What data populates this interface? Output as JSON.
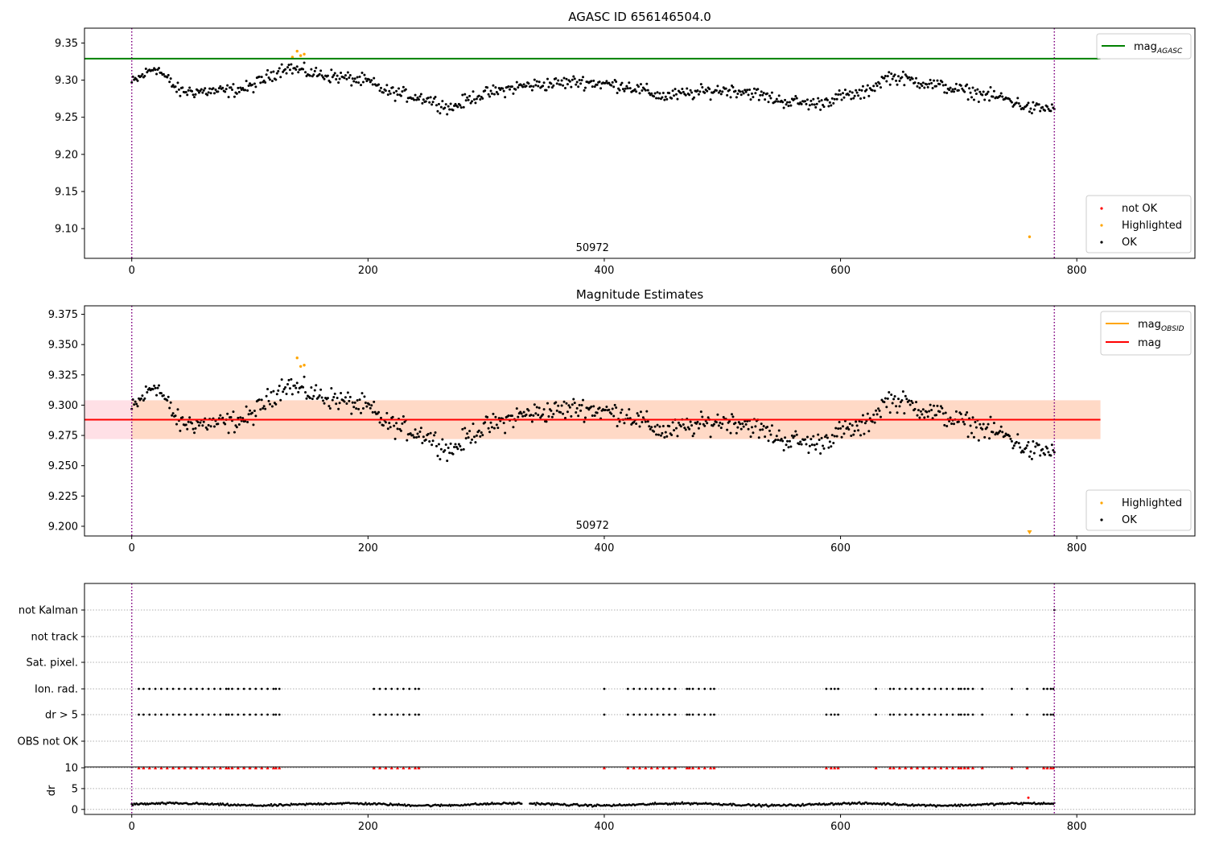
{
  "figure": {
    "background": "#ffffff"
  },
  "chart_data": [
    {
      "type": "scatter",
      "title": "AGASC ID 656146504.0",
      "xlim": [
        -40,
        900
      ],
      "ylim": [
        9.06,
        9.37
      ],
      "xticks": [
        0,
        200,
        400,
        600,
        800
      ],
      "yticks": [
        9.1,
        9.15,
        9.2,
        9.25,
        9.3,
        9.35
      ],
      "ytick_labels": [
        "9.10",
        "9.15",
        "9.20",
        "9.25",
        "9.30",
        "9.35"
      ],
      "obsid_label": "50972",
      "obsid_label_x": 390,
      "obs_bounds": [
        0,
        781
      ],
      "series_line": {
        "name": "mag_AGASC",
        "label_main": "mag",
        "label_sub": "AGASC",
        "y": 9.329,
        "x": [
          -40,
          820
        ],
        "color": "#008000"
      },
      "highlighted": [
        [
          140,
          9.339
        ],
        [
          143,
          9.333
        ],
        [
          146,
          9.335
        ],
        [
          136,
          9.331
        ],
        [
          760,
          9.089
        ]
      ],
      "legend_line": [
        {
          "label_main": "mag",
          "label_sub": "AGASC",
          "color": "#008000"
        }
      ],
      "legend_points": [
        {
          "label": "not OK",
          "color": "#ff0000"
        },
        {
          "label": "Highlighted",
          "color": "#ffa500"
        },
        {
          "label": "OK",
          "color": "#000000"
        }
      ]
    },
    {
      "type": "scatter",
      "title": "Magnitude Estimates",
      "xlim": [
        -40,
        900
      ],
      "ylim": [
        9.192,
        9.382
      ],
      "xticks": [
        0,
        200,
        400,
        600,
        800
      ],
      "yticks": [
        9.2,
        9.225,
        9.25,
        9.275,
        9.3,
        9.325,
        9.35,
        9.375
      ],
      "ytick_labels": [
        "9.200",
        "9.225",
        "9.250",
        "9.275",
        "9.300",
        "9.325",
        "9.350",
        "9.375"
      ],
      "obsid_label": "50972",
      "obsid_label_x": 390,
      "obs_bounds": [
        0,
        781
      ],
      "mag": 9.288,
      "mag_band": [
        9.272,
        9.304
      ],
      "mag_obsid_band": [
        9.272,
        9.304
      ],
      "band_extent": [
        -40,
        820
      ],
      "obs_band_extent": [
        0,
        820
      ],
      "highlighted": [
        [
          140,
          9.339
        ],
        [
          143,
          9.332
        ],
        [
          146,
          9.333
        ]
      ],
      "highlighted_below": [
        760
      ],
      "legend_lines": [
        {
          "label_main": "mag",
          "label_sub": "OBSID",
          "color": "#ffa500"
        },
        {
          "label_main": "mag",
          "label_sub": "",
          "color": "#ff0000"
        }
      ],
      "legend_points": [
        {
          "label": "Highlighted",
          "color": "#ffa500"
        },
        {
          "label": "OK",
          "color": "#000000"
        }
      ]
    },
    {
      "type": "scatter",
      "title": "",
      "xlim": [
        -40,
        900
      ],
      "xticks": [
        0,
        200,
        400,
        600,
        800
      ],
      "obs_bounds": [
        0,
        781
      ],
      "flags": [
        "not Kalman",
        "not track",
        "Sat. pixel.",
        "Ion. rad.",
        "dr > 5",
        "OBS not OK"
      ],
      "flag_rows_x": [
        [
          781
        ],
        [],
        [],
        [
          6,
          10,
          15,
          20,
          25,
          30,
          35,
          40,
          45,
          50,
          55,
          60,
          65,
          70,
          75,
          80,
          82,
          85,
          90,
          95,
          100,
          105,
          110,
          115,
          120,
          122,
          125,
          205,
          210,
          215,
          220,
          225,
          230,
          235,
          240,
          243,
          400,
          420,
          425,
          430,
          435,
          440,
          445,
          450,
          455,
          460,
          470,
          472,
          475,
          480,
          485,
          490,
          493,
          588,
          592,
          595,
          598,
          630,
          642,
          645,
          650,
          655,
          660,
          665,
          670,
          675,
          680,
          685,
          690,
          695,
          700,
          702,
          705,
          708,
          712,
          720,
          745,
          758,
          772,
          775,
          778,
          780
        ],
        [
          6,
          10,
          15,
          20,
          25,
          30,
          35,
          40,
          45,
          50,
          55,
          60,
          65,
          70,
          75,
          80,
          82,
          85,
          90,
          95,
          100,
          105,
          110,
          115,
          120,
          122,
          125,
          205,
          210,
          215,
          220,
          225,
          230,
          235,
          240,
          243,
          400,
          420,
          425,
          430,
          435,
          440,
          445,
          450,
          455,
          460,
          470,
          472,
          475,
          480,
          485,
          490,
          493,
          588,
          592,
          595,
          598,
          630,
          642,
          645,
          650,
          655,
          660,
          665,
          670,
          675,
          680,
          685,
          690,
          695,
          700,
          702,
          705,
          708,
          712,
          720,
          745,
          758,
          772,
          775,
          778,
          780
        ],
        []
      ],
      "dr_ylabel": "dr",
      "dr_yticks": [
        0,
        5,
        10
      ],
      "dr_ylim": [
        -1.2,
        10.2
      ],
      "dr_clip": 10,
      "dr_big_x": [
        6,
        10,
        15,
        20,
        25,
        30,
        35,
        40,
        45,
        50,
        55,
        60,
        65,
        70,
        75,
        80,
        82,
        85,
        90,
        95,
        100,
        105,
        110,
        115,
        120,
        122,
        125,
        205,
        210,
        215,
        220,
        225,
        230,
        235,
        240,
        243,
        400,
        420,
        425,
        430,
        435,
        440,
        445,
        450,
        455,
        460,
        470,
        472,
        475,
        480,
        485,
        490,
        493,
        588,
        592,
        595,
        598,
        630,
        642,
        645,
        650,
        655,
        660,
        665,
        670,
        675,
        680,
        685,
        690,
        695,
        700,
        702,
        705,
        708,
        712,
        720,
        745,
        758,
        772,
        775,
        778,
        780
      ],
      "dr_red_points": [
        [
          759,
          2.8
        ]
      ],
      "dr_baseline": 1.2
    }
  ]
}
